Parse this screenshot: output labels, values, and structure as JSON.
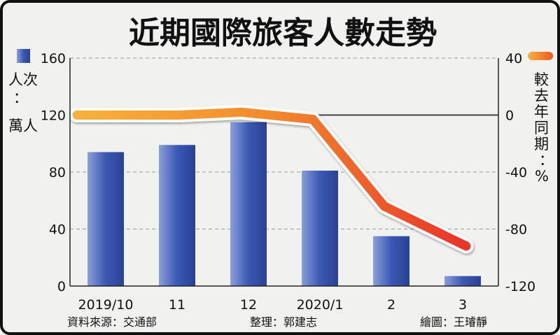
{
  "chart_data": {
    "type": "bar+line",
    "title": "近期國際旅客人數走勢",
    "categories": [
      "2019/10",
      "11",
      "12",
      "2020/1",
      "2",
      "3"
    ],
    "series": [
      {
        "values": [
          94,
          99,
          115,
          81,
          35,
          7
        ],
        "axis": "left",
        "type": "bar",
        "color": "#3f5fb5"
      },
      {
        "values": [
          0,
          0,
          2,
          -3,
          -64,
          -92
        ],
        "axis": "right",
        "type": "line",
        "color": "#ee5a28"
      }
    ],
    "y_left": {
      "label": [
        "人次",
        "：",
        "萬人"
      ],
      "ticks": [
        0,
        40,
        80,
        120,
        160
      ],
      "ylim": [
        0,
        160
      ]
    },
    "y_right": {
      "label": [
        "較",
        "去",
        "年",
        "同",
        "期",
        "：",
        "%"
      ],
      "ticks": [
        "40",
        "0",
        "-40",
        "-80",
        "-120"
      ],
      "ylim": [
        -120,
        40
      ]
    },
    "grid": true,
    "legend": [
      "left-axis-bar-swatch",
      "right-axis-line-swatch"
    ]
  },
  "footer": {
    "source": "資料來源：交通部",
    "editor": "整理：郭建志",
    "artist": "繪圖：王璿靜"
  }
}
